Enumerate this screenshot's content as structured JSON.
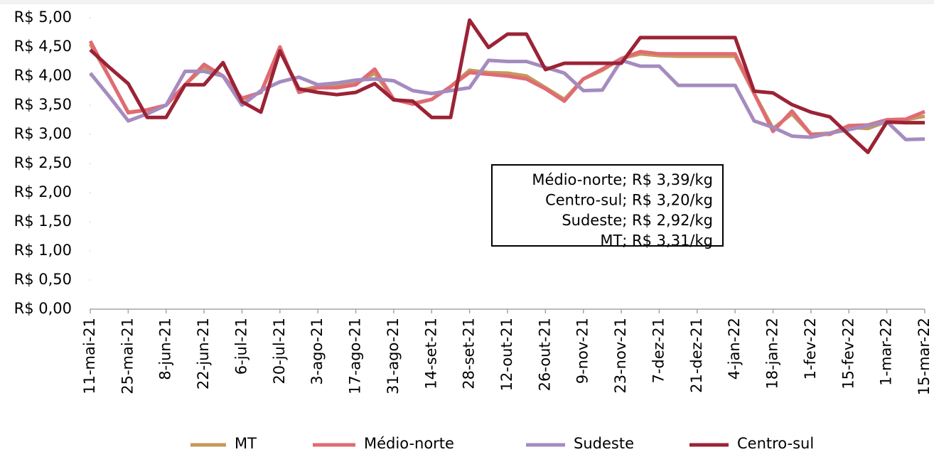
{
  "chart_data": {
    "type": "line",
    "categories": [
      "11-mai-21",
      null,
      "25-mai-21",
      null,
      "8-jun-21",
      null,
      "22-jun-21",
      null,
      "6-jul-21",
      null,
      "20-jul-21",
      null,
      "3-ago-21",
      null,
      "17-ago-21",
      null,
      "31-ago-21",
      null,
      "14-set-21",
      null,
      "28-set-21",
      null,
      "12-out-21",
      null,
      "26-out-21",
      null,
      "9-nov-21",
      null,
      "23-nov-21",
      null,
      "7-dez-21",
      null,
      "21-dez-21",
      null,
      "4-jan-22",
      null,
      "18-jan-22",
      null,
      "1-fev-22",
      null,
      "15-fev-22",
      null,
      "1-mar-22",
      null,
      "15-mar-22"
    ],
    "series": [
      {
        "name": "MT",
        "color": "#c49a5a",
        "values": [
          4.55,
          3.98,
          3.38,
          3.42,
          3.5,
          3.85,
          4.15,
          4.0,
          3.6,
          3.72,
          4.45,
          3.75,
          3.82,
          3.83,
          3.87,
          4.05,
          3.6,
          3.53,
          3.6,
          3.82,
          4.1,
          4.06,
          4.05,
          4.0,
          3.8,
          3.6,
          3.95,
          4.1,
          4.3,
          4.38,
          4.35,
          4.34,
          4.34,
          4.34,
          4.34,
          3.7,
          3.1,
          3.35,
          3.0,
          3.02,
          3.12,
          3.1,
          3.22,
          3.25,
          3.31
        ]
      },
      {
        "name": "Médio-norte",
        "color": "#e06b74",
        "values": [
          4.6,
          3.98,
          3.37,
          3.42,
          3.5,
          3.85,
          4.2,
          4.0,
          3.62,
          3.72,
          4.5,
          3.72,
          3.8,
          3.8,
          3.85,
          4.12,
          3.6,
          3.52,
          3.6,
          3.82,
          4.06,
          4.03,
          4.0,
          3.95,
          3.78,
          3.57,
          3.95,
          4.12,
          4.3,
          4.42,
          4.38,
          4.38,
          4.38,
          4.38,
          4.38,
          3.7,
          3.05,
          3.4,
          3.0,
          3.0,
          3.15,
          3.16,
          3.25,
          3.26,
          3.39
        ]
      },
      {
        "name": "Sudeste",
        "color": "#a58bbf",
        "values": [
          4.05,
          3.65,
          3.23,
          3.35,
          3.5,
          4.08,
          4.08,
          4.0,
          3.5,
          3.75,
          3.9,
          3.98,
          3.85,
          3.88,
          3.93,
          3.95,
          3.92,
          3.75,
          3.7,
          3.75,
          3.8,
          4.27,
          4.25,
          4.25,
          4.15,
          4.05,
          3.75,
          3.76,
          4.27,
          4.17,
          4.17,
          3.84,
          3.84,
          3.84,
          3.84,
          3.23,
          3.12,
          2.97,
          2.95,
          3.02,
          3.08,
          3.15,
          3.22,
          2.91,
          2.92
        ]
      },
      {
        "name": "Centro-sul",
        "color": "#9b2335",
        "values": [
          4.45,
          4.15,
          3.87,
          3.29,
          3.29,
          3.85,
          3.85,
          4.23,
          3.56,
          3.38,
          4.43,
          3.78,
          3.72,
          3.68,
          3.72,
          3.87,
          3.59,
          3.57,
          3.29,
          3.29,
          4.96,
          4.49,
          4.72,
          4.72,
          4.11,
          4.22,
          4.22,
          4.22,
          4.22,
          4.66,
          4.66,
          4.66,
          4.66,
          4.66,
          4.66,
          3.74,
          3.71,
          3.51,
          3.38,
          3.3,
          2.99,
          2.69,
          3.21,
          3.2,
          3.2
        ]
      }
    ],
    "ylim": [
      0,
      5
    ],
    "yticks": [
      {
        "value": 0,
        "label": "R$ 0,00"
      },
      {
        "value": 0.5,
        "label": "R$ 0,50"
      },
      {
        "value": 1,
        "label": "R$ 1,00"
      },
      {
        "value": 1.5,
        "label": "R$ 1,50"
      },
      {
        "value": 2,
        "label": "R$ 2,00"
      },
      {
        "value": 2.5,
        "label": "R$ 2,50"
      },
      {
        "value": 3,
        "label": "R$ 3,00"
      },
      {
        "value": 3.5,
        "label": "R$ 3,50"
      },
      {
        "value": 4,
        "label": "R$ 4,00"
      },
      {
        "value": 4.5,
        "label": "R$ 4,50"
      },
      {
        "value": 5,
        "label": "R$ 5,00"
      }
    ],
    "annotations": [
      "Médio-norte; R$ 3,39/kg",
      "Centro-sul; R$ 3,20/kg",
      "Sudeste; R$ 2,92/kg",
      "MT; R$ 3,31/kg"
    ],
    "legend": "bottom"
  }
}
